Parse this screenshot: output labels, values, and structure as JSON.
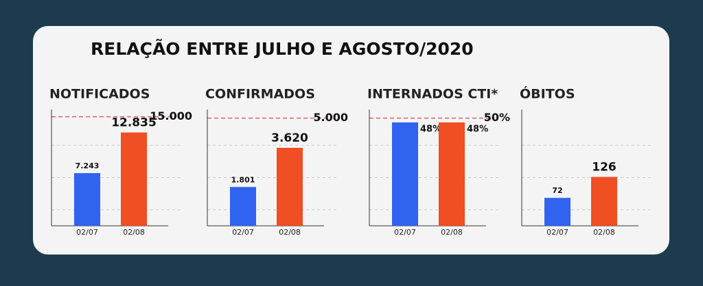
{
  "title": "RELAÇÃO ENTRE JULHO E AGOSTO/2020",
  "chart_data": [
    {
      "type": "bar",
      "title": "NOTIFICADOS",
      "categories": [
        "02/07",
        "02/08"
      ],
      "values": [
        7243,
        12835
      ],
      "value_labels": [
        "7.243",
        "12.835"
      ],
      "colors": [
        "#2f63f0",
        "#f04e23"
      ],
      "ylim": [
        0,
        16000
      ],
      "yticks": [
        {
          "value": 15000,
          "label": "15.000"
        }
      ],
      "grid": true
    },
    {
      "type": "bar",
      "title": "CONFIRMADOS",
      "categories": [
        "02/07",
        "02/08"
      ],
      "values": [
        1801,
        3620
      ],
      "value_labels": [
        "1.801",
        "3.620"
      ],
      "colors": [
        "#2f63f0",
        "#f04e23"
      ],
      "ylim": [
        0,
        5400
      ],
      "yticks": [
        {
          "value": 5000,
          "label": "5.000"
        }
      ],
      "grid": true
    },
    {
      "type": "bar",
      "title": "INTERNADOS CTI*",
      "categories": [
        "02/07",
        "02/08"
      ],
      "values": [
        48,
        48
      ],
      "value_labels": [
        "48%",
        "48%"
      ],
      "colors": [
        "#2f63f0",
        "#f04e23"
      ],
      "ylim": [
        0,
        54
      ],
      "yticks": [
        {
          "value": 50,
          "label": "50%"
        }
      ],
      "grid": true
    },
    {
      "type": "bar",
      "title": "ÓBITOS",
      "categories": [
        "02/07",
        "02/08"
      ],
      "values": [
        72,
        126
      ],
      "colors": [
        "#2f63f0",
        "#f04e23"
      ],
      "ylim": [
        0,
        300
      ],
      "grid": true
    }
  ]
}
